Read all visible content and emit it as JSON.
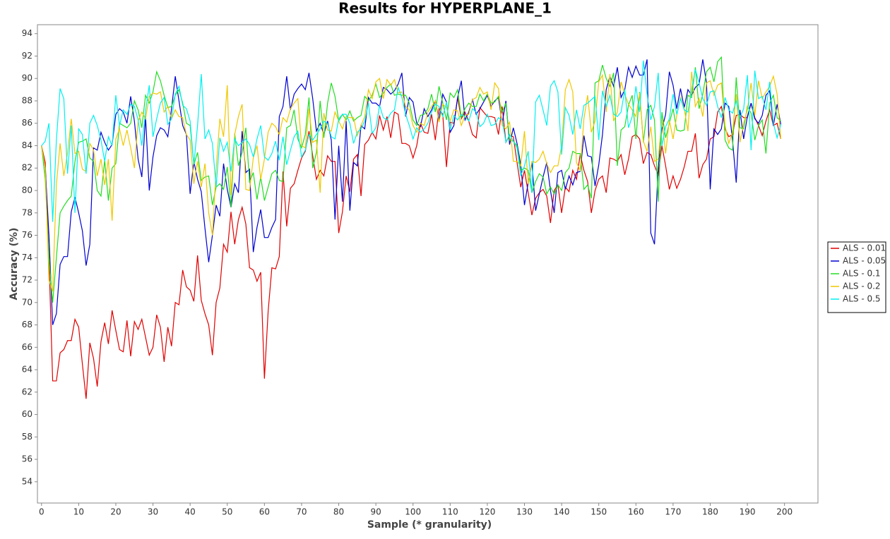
{
  "chart_data": {
    "type": "line",
    "title": "Results for HYPERPLANE_1",
    "x_label": "Sample (* granularity)",
    "y_label": "Accuracy (%)",
    "legend": "right",
    "grid": false,
    "xlim": [
      -1.1,
      209
    ],
    "ylim": [
      52.1,
      94.8
    ],
    "xticks": [
      0,
      10,
      20,
      30,
      40,
      50,
      60,
      70,
      80,
      90,
      100,
      110,
      120,
      130,
      140,
      150,
      160,
      170,
      180,
      190,
      200
    ],
    "yticks": [
      54,
      56,
      58,
      60,
      62,
      64,
      66,
      68,
      70,
      72,
      74,
      76,
      78,
      80,
      82,
      84,
      86,
      88,
      90,
      92,
      94
    ],
    "x": [
      0,
      1,
      2,
      3,
      4,
      5,
      6,
      7,
      8,
      9,
      10,
      11,
      12,
      13,
      14,
      15,
      16,
      17,
      18,
      19,
      20,
      21,
      22,
      23,
      24,
      25,
      26,
      27,
      28,
      29,
      30,
      31,
      32,
      33,
      34,
      35,
      36,
      37,
      38,
      39,
      40,
      41,
      42,
      43,
      44,
      45,
      46,
      47,
      48,
      49,
      50,
      51,
      52,
      53,
      54,
      55,
      56,
      57,
      58,
      59,
      60,
      61,
      62,
      63,
      64,
      65,
      66,
      67,
      68,
      69,
      70,
      71,
      72,
      73,
      74,
      75,
      76,
      77,
      78,
      79,
      80,
      81,
      82,
      83,
      84,
      85,
      86,
      87,
      88,
      89,
      90,
      91,
      92,
      93,
      94,
      95,
      96,
      97,
      98,
      99,
      100,
      101,
      102,
      103,
      104,
      105,
      106,
      107,
      108,
      109,
      110,
      111,
      112,
      113,
      114,
      115,
      116,
      117,
      118,
      119,
      120,
      121,
      122,
      123,
      124,
      125,
      126,
      127,
      128,
      129,
      130,
      131,
      132,
      133,
      134,
      135,
      136,
      137,
      138,
      139,
      140,
      141,
      142,
      143,
      144,
      145,
      146,
      147,
      148,
      149,
      150,
      151,
      152,
      153,
      154,
      155,
      156,
      157,
      158,
      159,
      160,
      161,
      162,
      163,
      164,
      165,
      166,
      167,
      168,
      169,
      170,
      171,
      172,
      173,
      174,
      175,
      176,
      177,
      178,
      179,
      180,
      181,
      182,
      183,
      184,
      185,
      186,
      187,
      188,
      189,
      190,
      191,
      192,
      193,
      194,
      195,
      196,
      197,
      198,
      199
    ],
    "series": [
      {
        "name": "ALS - 0.01",
        "color": "#e00000",
        "values": [
          84,
          82.5,
          74,
          63,
          63,
          65.5,
          65.8,
          66.6,
          66.6,
          68.5,
          67.8,
          64.5,
          61.4,
          66.4,
          65,
          62.5,
          66.5,
          68.2,
          66.3,
          69.3,
          67.5,
          65.8,
          65.6,
          68.4,
          65.2,
          68.3,
          67.6,
          68.5,
          66.9,
          65.3,
          66,
          68.9,
          67.8,
          64.7,
          67.8,
          66.1,
          70,
          69.8,
          72.9,
          71.4,
          71.1,
          70.1,
          74.2,
          70.2,
          69,
          68,
          65.3,
          70,
          71.3,
          75.2,
          74.5,
          78.1,
          75.2,
          77.4,
          78.5,
          77,
          73.1,
          72.9,
          71.9,
          72.7,
          63.2,
          69.2,
          73.1,
          73,
          74.1,
          81.7,
          76.8,
          80.2,
          80.6,
          81.8,
          82.9,
          83.5,
          85.3,
          83.1,
          81,
          81.8,
          81.3,
          83.1,
          82.6,
          82.6,
          76.2,
          78.1,
          81.3,
          79.9,
          82.8,
          83.2,
          79.5,
          84.1,
          84.5,
          85.2,
          84.6,
          86.7,
          85.4,
          86.6,
          84.7,
          87,
          86.8,
          84.2,
          84.2,
          84,
          82.9,
          84,
          86,
          85.2,
          85.1,
          86.8,
          84.5,
          87.3,
          86.8,
          82.1,
          86.1,
          86,
          88.3,
          86.4,
          87,
          86.2,
          85,
          84.7,
          87.4,
          87,
          86.6,
          86.6,
          86.5,
          85,
          87.5,
          84.3,
          84.9,
          84.8,
          82.5,
          80.3,
          81.8,
          79.8,
          77.8,
          79.3,
          79.8,
          80.1,
          79.5,
          77.1,
          80,
          80.5,
          78,
          80.3,
          79.9,
          81.8,
          81,
          83.2,
          81.8,
          80.8,
          78,
          80,
          81,
          81.3,
          79.8,
          82.9,
          82.8,
          82.6,
          83.2,
          81.4,
          82.8,
          84.8,
          85,
          84.6,
          82.4,
          83.4,
          83.2,
          82.2,
          81.4,
          84,
          82.2,
          80.1,
          81.3,
          80.2,
          81,
          82.1,
          83.5,
          83.5,
          85.1,
          81.1,
          82.3,
          82.8,
          84.6,
          84.8,
          87,
          87.5,
          85.5,
          84.8,
          85,
          86.7,
          86.8,
          86.5,
          86.5,
          87.8,
          86.5,
          85.8,
          84.9,
          86.2,
          87.2,
          85.8,
          86,
          84.6
        ]
      },
      {
        "name": "ALS - 0.05",
        "color": "#0000d0",
        "values": [
          84,
          82,
          76,
          68,
          69,
          73.4,
          74.1,
          74.1,
          78.1,
          79.4,
          78,
          76.4,
          73.3,
          75.2,
          83.8,
          83.6,
          85.2,
          84.3,
          83.6,
          84.1,
          86.8,
          87.3,
          87,
          86,
          88.4,
          86.2,
          82.8,
          81.2,
          86.6,
          80,
          83,
          84.9,
          85.6,
          85.4,
          84.8,
          87.3,
          90.2,
          88,
          85.8,
          85,
          79.7,
          82.6,
          81,
          79.9,
          76.6,
          73.6,
          76,
          78.7,
          77.7,
          82.4,
          80.1,
          78.5,
          80.6,
          79.8,
          85.3,
          81.6,
          81.9,
          74.5,
          76.7,
          78.3,
          75.8,
          75.8,
          76.7,
          77.4,
          86.6,
          87.5,
          90.2,
          87.2,
          88.6,
          89.1,
          89.5,
          89,
          90.5,
          88.2,
          85.3,
          86,
          85,
          86.2,
          84.5,
          77.4,
          84,
          79,
          86.2,
          78.2,
          82.5,
          82.2,
          85.8,
          85.5,
          88.3,
          87.8,
          87.8,
          87.5,
          89.2,
          89,
          88.6,
          88.9,
          89.5,
          90.5,
          86.6,
          88.3,
          87.9,
          86,
          85.7,
          87.3,
          86.6,
          87.2,
          88,
          86.3,
          88.6,
          87.9,
          85.2,
          85.8,
          88.3,
          89.8,
          86.3,
          87,
          88.1,
          86.8,
          87.3,
          87.9,
          88.5,
          87.5,
          88,
          88.3,
          86,
          88,
          84.1,
          85.6,
          84.2,
          82.3,
          78.7,
          80.7,
          82.5,
          78.2,
          79.7,
          81.2,
          82.5,
          80,
          78,
          81.6,
          81.8,
          80.1,
          81.3,
          80.5,
          81.6,
          81.7,
          84.9,
          83.1,
          83,
          80.4,
          82.3,
          85,
          89,
          90.2,
          89.3,
          91,
          88.3,
          89,
          91,
          90.1,
          91.1,
          90.3,
          90.3,
          91.7,
          76.2,
          75.2,
          82,
          85.5,
          86.8,
          90.6,
          89.4,
          87.3,
          89.1,
          87.4,
          89,
          88.5,
          89.2,
          89.5,
          91.7,
          89.6,
          80.1,
          85.5,
          85,
          85.5,
          87.8,
          87.5,
          84.5,
          80.7,
          87.2,
          84.6,
          86.6,
          87.8,
          86.4,
          86,
          86.7,
          88.5,
          88.9,
          85.8,
          87.7,
          85.9
        ]
      },
      {
        "name": "ALS - 0.1",
        "color": "#22dd22",
        "values": [
          84,
          81,
          74,
          70,
          74,
          78,
          78.6,
          79.1,
          79.5,
          82.6,
          84.3,
          84.4,
          84.6,
          82.9,
          82.6,
          80,
          79.5,
          82.7,
          79.1,
          82,
          82.4,
          86,
          85.8,
          85.6,
          86,
          88,
          87.2,
          85.6,
          88.5,
          87.8,
          88.8,
          90.6,
          89.8,
          88.5,
          87.4,
          87.5,
          88.5,
          89,
          87.8,
          86,
          85.8,
          82.3,
          83.4,
          80.9,
          81.2,
          81.3,
          78.7,
          80.3,
          80.6,
          80.1,
          82.1,
          78.5,
          85.1,
          82.2,
          83.4,
          85.6,
          80.7,
          81.6,
          79.2,
          81.2,
          79.1,
          80.3,
          81.5,
          81.8,
          80.9,
          80.8,
          85.6,
          85.8,
          87.2,
          84.6,
          83.8,
          85,
          88.3,
          82,
          83.4,
          88,
          84.7,
          87.8,
          89.6,
          88.4,
          86.2,
          86.8,
          86.3,
          87.1,
          86.2,
          86.5,
          86.7,
          88.4,
          88,
          88.5,
          89.5,
          88.3,
          88.7,
          89.2,
          89.5,
          88.5,
          88.6,
          88.5,
          88.5,
          87.8,
          86.3,
          85.8,
          86.7,
          86.8,
          87.3,
          88.6,
          87,
          89.3,
          87.8,
          86.3,
          88.7,
          88.3,
          89,
          86.5,
          87.3,
          87.8,
          87.5,
          87.5,
          88.6,
          88,
          88.6,
          87.8,
          87.9,
          88.4,
          87,
          87.8,
          84.5,
          84.4,
          84,
          81.8,
          82,
          81.8,
          79.8,
          80.8,
          81.5,
          81.2,
          79.7,
          80.3,
          79.7,
          80.5,
          80,
          81.6,
          82,
          83.5,
          83.3,
          83.3,
          80.1,
          80.5,
          79.3,
          89.6,
          89.8,
          91.2,
          90,
          89.3,
          90.5,
          82.2,
          85.4,
          85.7,
          87.6,
          88.5,
          84.6,
          88.8,
          84.3,
          87.2,
          87.6,
          86.3,
          79,
          87,
          84.7,
          86,
          87.3,
          85.4,
          85.3,
          85.4,
          88.5,
          88.3,
          91,
          87.3,
          88.6,
          90.6,
          91,
          89.7,
          91.5,
          91.9,
          84.5,
          83.8,
          83.6,
          90.1,
          85.6,
          85.5,
          87.5,
          86.9,
          84.5,
          85.8,
          86.3,
          83.3,
          87.8,
          88.5,
          86.5,
          86.2
        ]
      },
      {
        "name": "ALS - 0.2",
        "color": "#f0c800",
        "values": [
          84,
          82,
          72,
          71,
          80.5,
          84.2,
          81.3,
          83.3,
          86.4,
          83.3,
          83.5,
          81.9,
          81.7,
          84.2,
          83.6,
          81.3,
          82.8,
          80.5,
          82.8,
          77.3,
          84.6,
          85.5,
          84,
          85.4,
          83.8,
          82,
          86.2,
          87,
          86.4,
          88.4,
          88.7,
          88.6,
          88.8,
          87,
          87.5,
          86.4,
          87.2,
          86.6,
          86.5,
          85,
          84.5,
          80.6,
          82.6,
          80.3,
          82.4,
          78,
          76,
          81.9,
          86.4,
          84.8,
          89.4,
          79.6,
          85,
          86.6,
          87.7,
          80.1,
          80,
          82.9,
          84,
          81,
          82.8,
          85.2,
          86,
          85.7,
          85,
          86.5,
          86.1,
          87.3,
          87.8,
          88.2,
          84,
          83.8,
          87.3,
          84.3,
          84.5,
          79.8,
          86.9,
          85.4,
          85.3,
          87,
          86.2,
          85.5,
          86.6,
          86.5,
          86.5,
          84.9,
          85.8,
          86.6,
          89,
          88.2,
          89.7,
          90,
          88.2,
          89.9,
          89.4,
          89.9,
          88.7,
          88.8,
          87.5,
          87.2,
          85.8,
          85.2,
          86,
          85.8,
          87,
          87.5,
          88,
          86.1,
          87.7,
          87.4,
          86.2,
          87.2,
          87.1,
          85.8,
          86.7,
          86.8,
          88.1,
          88.3,
          89.2,
          88.6,
          88.8,
          87.2,
          89.6,
          89.1,
          85.8,
          85.5,
          86.1,
          82.6,
          82.6,
          82.2,
          85.3,
          80.6,
          82.6,
          82.5,
          82.8,
          83.5,
          82.4,
          81.6,
          82.2,
          82.2,
          84,
          89,
          89.9,
          88.8,
          82.5,
          81.8,
          86.4,
          88.5,
          85.2,
          86.2,
          89.7,
          90.3,
          87,
          90.4,
          86.2,
          87,
          89.7,
          88.6,
          87.7,
          87.2,
          86.6,
          88.7,
          84.4,
          83.5,
          85.7,
          82.6,
          82.8,
          86.4,
          83.3,
          86.3,
          84.6,
          86.7,
          88.3,
          87.3,
          85.3,
          90.6,
          87.5,
          88.2,
          86.6,
          89.6,
          89.8,
          88.5,
          89.4,
          89.6,
          85.8,
          84.2,
          85.2,
          88.6,
          84.3,
          86,
          87.2,
          89.6,
          86.7,
          89.8,
          88.2,
          88.8,
          89.3,
          90.2,
          88.6,
          84.6
        ]
      },
      {
        "name": "ALS - 0.5",
        "color": "#00f0f0",
        "values": [
          84,
          84.4,
          86,
          77.2,
          84.5,
          89.1,
          88.2,
          81.5,
          85.8,
          78,
          85.5,
          85,
          81.5,
          86,
          86.7,
          85.8,
          84.5,
          82.6,
          84.8,
          84,
          88.5,
          85.8,
          87.2,
          86.8,
          87.7,
          87.5,
          86.3,
          84,
          87.1,
          89.4,
          84.8,
          86.4,
          87.8,
          88.3,
          85.9,
          86.4,
          88.6,
          89.3,
          87.6,
          87.3,
          86.2,
          82.3,
          85.8,
          90.4,
          84.6,
          85.4,
          84.2,
          80.3,
          84.7,
          83.5,
          84.3,
          81.7,
          84.6,
          84,
          84.3,
          84.6,
          84.1,
          83,
          84.6,
          85.8,
          83,
          82.7,
          83.3,
          84.4,
          82.7,
          84.8,
          82.3,
          83.6,
          84.8,
          85.3,
          83,
          83.6,
          85,
          84.5,
          85,
          85.5,
          86.2,
          86,
          84.8,
          84.6,
          86.4,
          86.8,
          86.8,
          86,
          84.2,
          85.2,
          85.5,
          86.2,
          87.8,
          85.1,
          85.6,
          87.6,
          86.5,
          86.3,
          86.9,
          87.2,
          89.2,
          88.3,
          86.8,
          85.8,
          84.6,
          85.6,
          85.2,
          85.5,
          86,
          87,
          87.7,
          87.5,
          86.6,
          87.9,
          85.4,
          86.7,
          86.3,
          86.8,
          86.6,
          86.2,
          87.3,
          87,
          85.7,
          86,
          86.8,
          85.8,
          85.9,
          86.5,
          86.3,
          84.3,
          85,
          84.4,
          83.8,
          81.3,
          82.2,
          83.5,
          79.8,
          87.9,
          88.5,
          87.2,
          85.8,
          89.3,
          89.8,
          88.8,
          83.2,
          87.4,
          86.7,
          85,
          87.2,
          85.5,
          87.6,
          87.8,
          88.1,
          88.4,
          84.5,
          88.9,
          87.5,
          88.5,
          86.8,
          86.6,
          87,
          89,
          85.6,
          86.6,
          89.3,
          87,
          91.6,
          88.6,
          86.3,
          87.5,
          90.5,
          84,
          85.7,
          86.4,
          88.6,
          86.8,
          88.2,
          87.2,
          87,
          89,
          90.8,
          89.6,
          88.2,
          87.6,
          88.8,
          88.9,
          87.5,
          86.5,
          88.3,
          87.2,
          86.9,
          88,
          86.5,
          87.3,
          90.3,
          83.6,
          90.7,
          88.2,
          88.4,
          87.2,
          89.7,
          86,
          84.7,
          85.9
        ]
      }
    ]
  }
}
